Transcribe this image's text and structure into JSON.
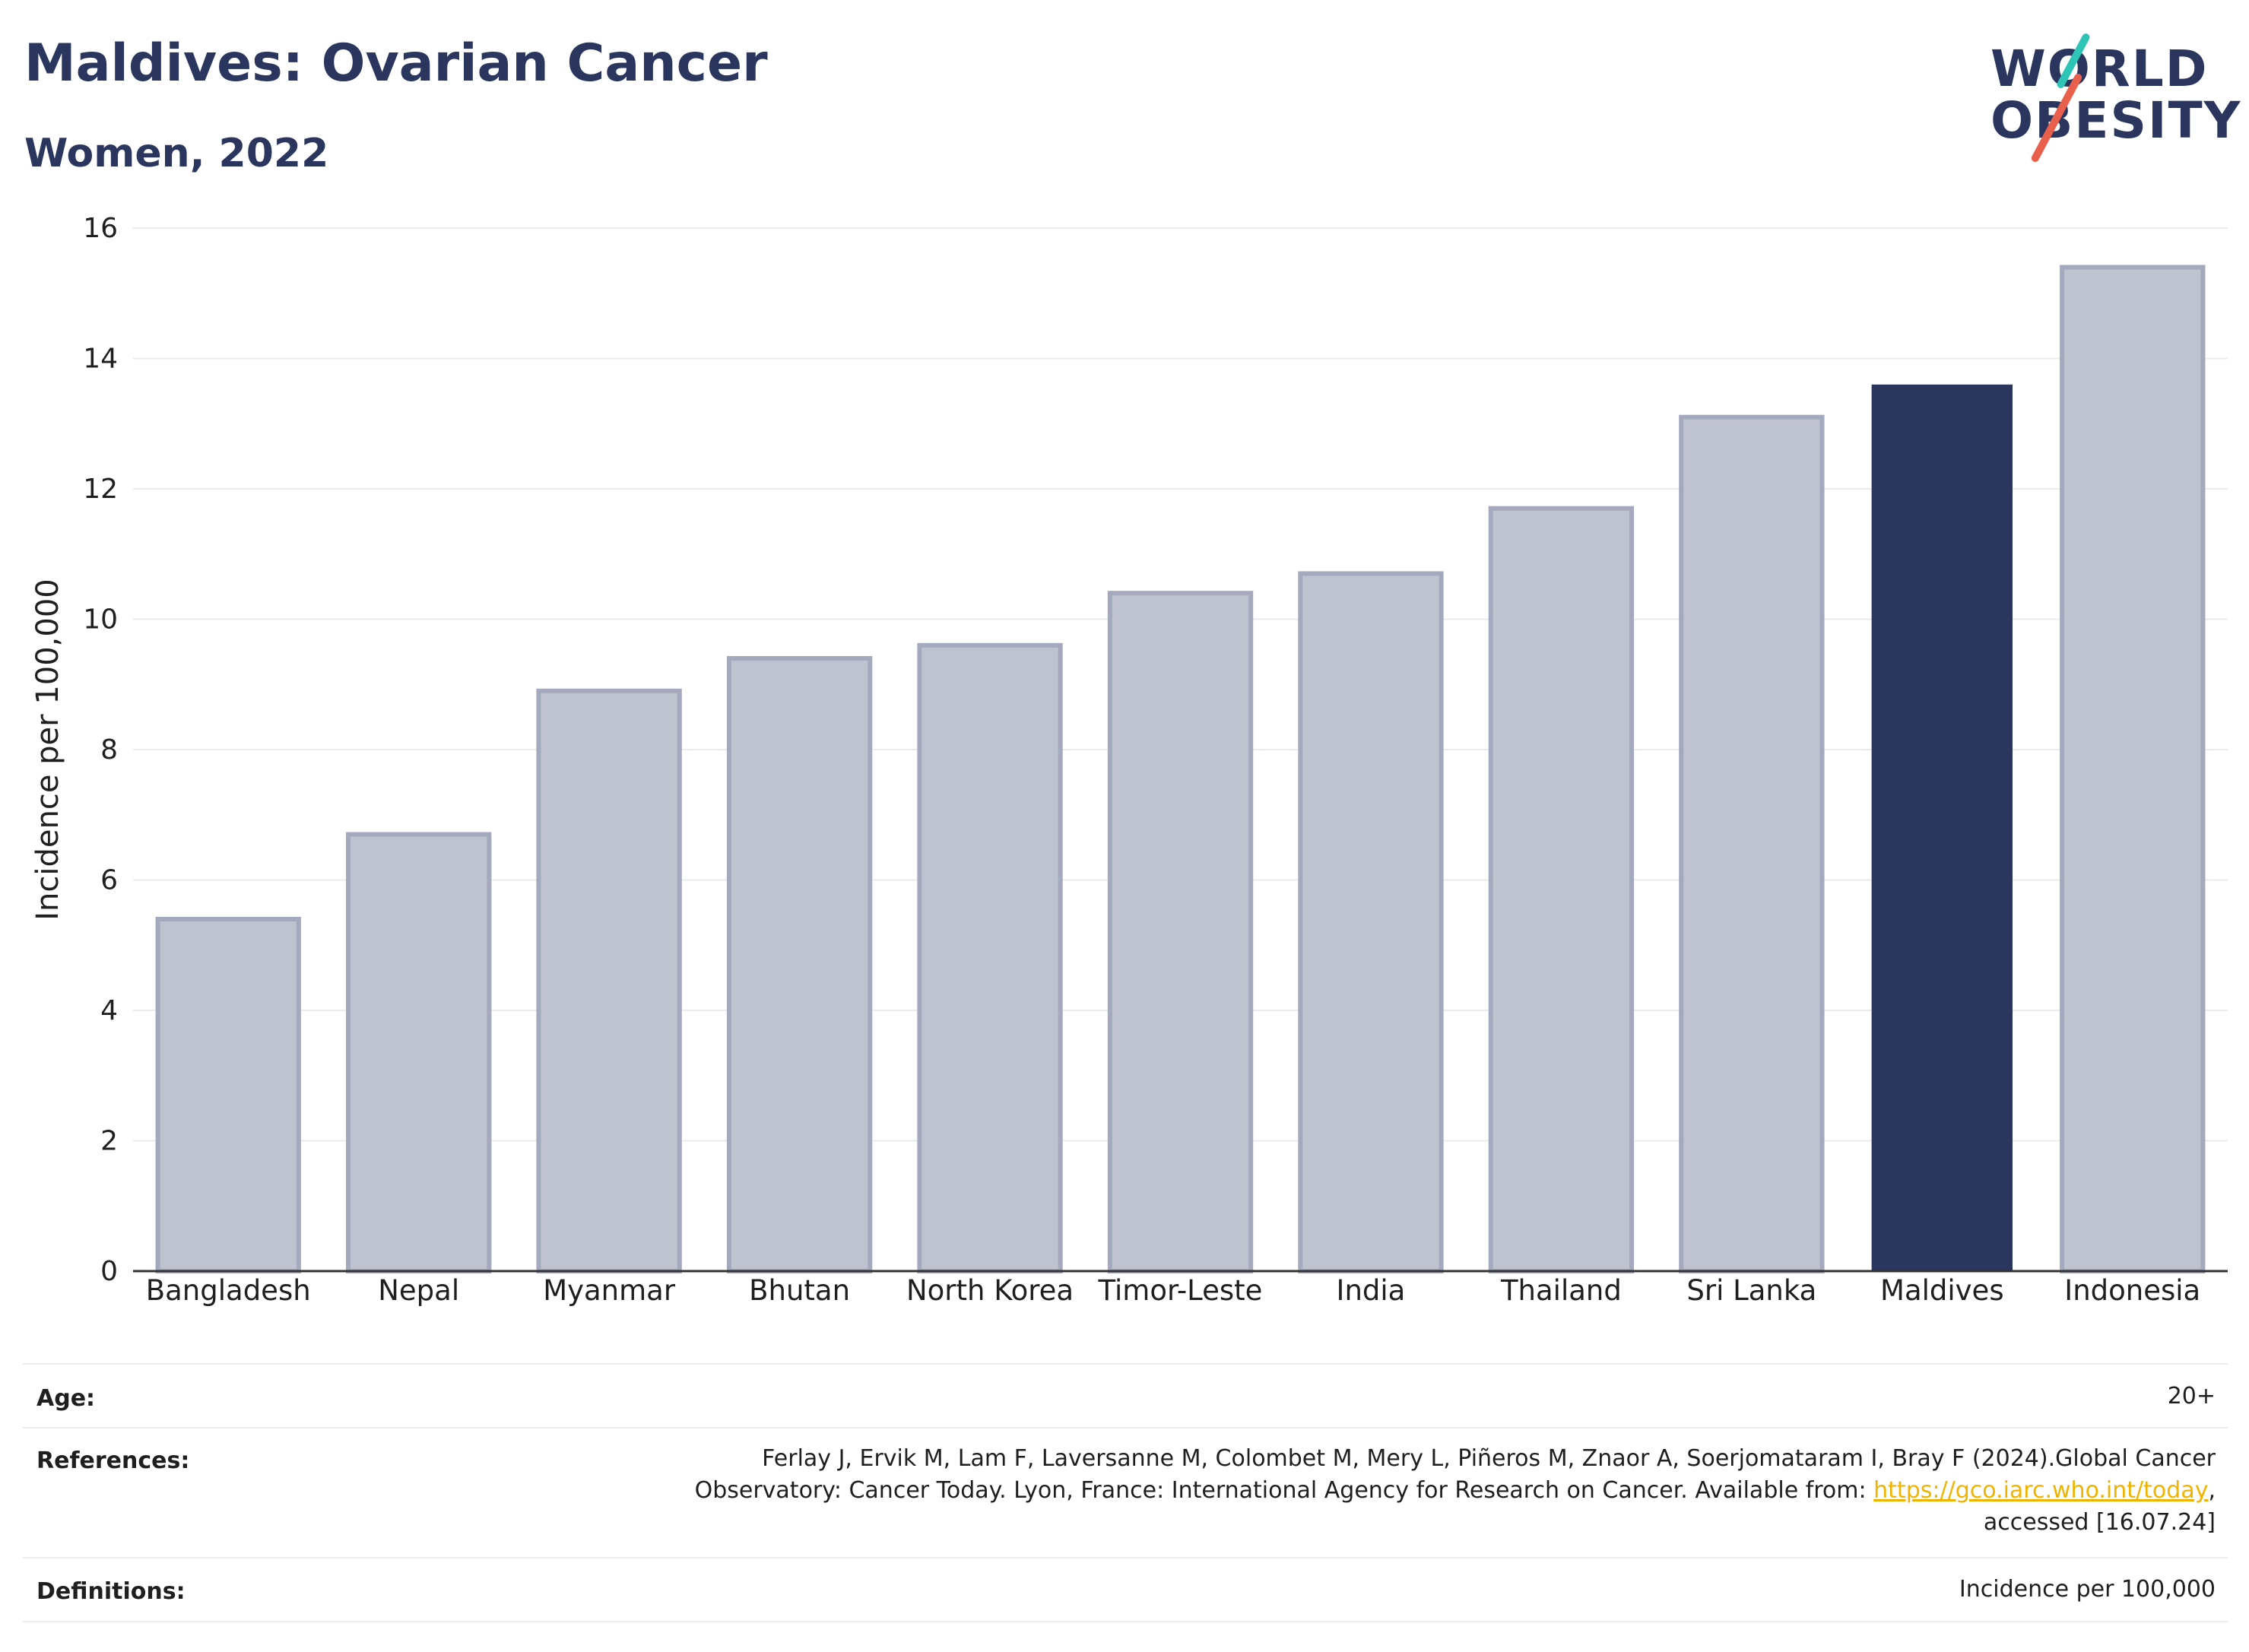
{
  "header": {
    "title": "Maldives: Ovarian Cancer",
    "subtitle": "Women, 2022"
  },
  "logo": {
    "line1": "WORLD",
    "line2": "OBESITY",
    "accent_colors": [
      "#2ec4b6",
      "#e8604c"
    ]
  },
  "chart_data": {
    "type": "bar",
    "title": "Maldives: Ovarian Cancer",
    "subtitle": "Women, 2022",
    "xlabel": "",
    "ylabel": "Incidence per 100,000",
    "ylim": [
      0,
      16
    ],
    "yticks": [
      0,
      2,
      4,
      6,
      8,
      10,
      12,
      14,
      16
    ],
    "grid": true,
    "categories": [
      "Bangladesh",
      "Nepal",
      "Myanmar",
      "Bhutan",
      "North Korea",
      "Timor-Leste",
      "India",
      "Thailand",
      "Sri Lanka",
      "Maldives",
      "Indonesia"
    ],
    "values": [
      5.4,
      6.7,
      8.9,
      9.4,
      9.6,
      10.4,
      10.7,
      11.7,
      13.1,
      13.6,
      15.4
    ],
    "highlight": "Maldives",
    "colors": {
      "default": "#bfc3d0",
      "default_edge": "#a4a9bd",
      "highlight": "#2b365e"
    }
  },
  "meta": {
    "age_label": "Age:",
    "age_value": "20+",
    "references_label": "References:",
    "references_line1": "Ferlay J, Ervik M, Lam F, Laversanne M, Colombet M, Mery L, Piñeros M, Znaor A, Soerjomataram I, Bray F (2024).Global Cancer",
    "references_line2_pre": "Observatory: Cancer Today. Lyon, France: International Agency for Research on Cancer. Available from: ",
    "references_link": "https://gco.iarc.who.int/today",
    "references_line2_post": ",",
    "references_line3": "accessed [16.07.24]",
    "definitions_label": "Definitions:",
    "definitions_value": "Incidence per 100,000"
  }
}
